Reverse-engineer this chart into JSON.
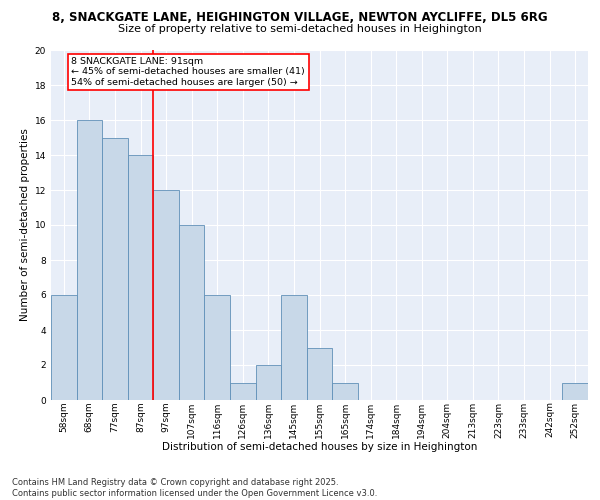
{
  "title_line1": "8, SNACKGATE LANE, HEIGHINGTON VILLAGE, NEWTON AYCLIFFE, DL5 6RG",
  "title_line2": "Size of property relative to semi-detached houses in Heighington",
  "xlabel": "Distribution of semi-detached houses by size in Heighington",
  "ylabel": "Number of semi-detached properties",
  "categories": [
    "58sqm",
    "68sqm",
    "77sqm",
    "87sqm",
    "97sqm",
    "107sqm",
    "116sqm",
    "126sqm",
    "136sqm",
    "145sqm",
    "155sqm",
    "165sqm",
    "174sqm",
    "184sqm",
    "194sqm",
    "204sqm",
    "213sqm",
    "223sqm",
    "233sqm",
    "242sqm",
    "252sqm"
  ],
  "values": [
    6,
    16,
    15,
    14,
    12,
    10,
    6,
    1,
    2,
    6,
    3,
    1,
    0,
    0,
    0,
    0,
    0,
    0,
    0,
    0,
    1
  ],
  "bar_color": "#c8d8e8",
  "bar_edge_color": "#6090b8",
  "red_line_x": 3.5,
  "annotation_line1": "8 SNACKGATE LANE: 91sqm",
  "annotation_line2": "← 45% of semi-detached houses are smaller (41)",
  "annotation_line3": "54% of semi-detached houses are larger (50) →",
  "annotation_box_color": "white",
  "annotation_box_edge_color": "red",
  "ylim": [
    0,
    20
  ],
  "yticks": [
    0,
    2,
    4,
    6,
    8,
    10,
    12,
    14,
    16,
    18,
    20
  ],
  "background_color": "#e8eef8",
  "grid_color": "white",
  "footer_text": "Contains HM Land Registry data © Crown copyright and database right 2025.\nContains public sector information licensed under the Open Government Licence v3.0.",
  "title_fontsize": 8.5,
  "subtitle_fontsize": 8,
  "axis_label_fontsize": 7.5,
  "tick_fontsize": 6.5,
  "annotation_fontsize": 6.8,
  "footer_fontsize": 6.0
}
